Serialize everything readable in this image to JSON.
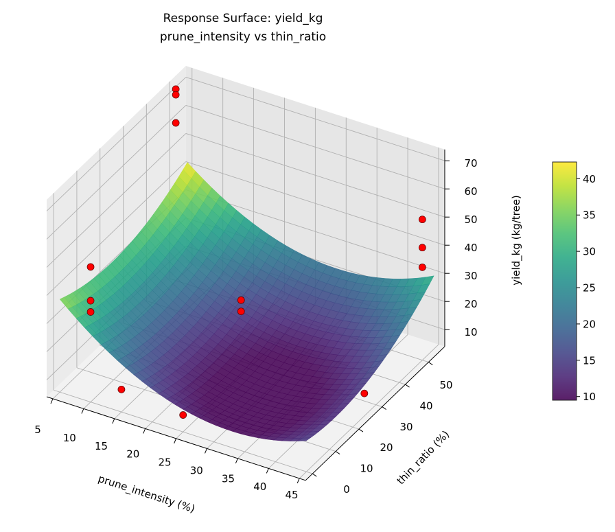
{
  "chart_data": {
    "type": "surface3d",
    "title": "Response Surface: yield_kg",
    "subtitle": "prune_intensity vs thin_ratio",
    "xlabel": "prune_intensity (%)",
    "ylabel": "thin_ratio (%)",
    "zlabel": "yield_kg (kg/tree)",
    "xlim": [
      4,
      46
    ],
    "ylim": [
      -3,
      57
    ],
    "zlim": [
      4,
      74
    ],
    "xticks": [
      "5",
      "10",
      "15",
      "20",
      "25",
      "30",
      "35",
      "40",
      "45"
    ],
    "yticks": [
      "0",
      "10",
      "20",
      "30",
      "40",
      "50"
    ],
    "zticks": [
      "10",
      "20",
      "30",
      "40",
      "50",
      "60",
      "70"
    ],
    "grid": true,
    "colormap": "viridis",
    "surface_model": {
      "description_terms": "quadratic fit",
      "corner_values": {
        "prune5_thin0": 37,
        "prune5_thin55": 42,
        "prune45_thin0": 15,
        "prune45_thin55": 30
      },
      "minimum": 9.5
    },
    "observed_points": {
      "color": "#ff0000",
      "points": [
        {
          "x": 10,
          "y": 0,
          "z": 52
        },
        {
          "x": 10,
          "y": 0,
          "z": 40
        },
        {
          "x": 10,
          "y": 0,
          "z": 36
        },
        {
          "x": 15,
          "y": 0,
          "z": 12
        },
        {
          "x": 5,
          "y": 50,
          "z": 72
        },
        {
          "x": 5,
          "y": 50,
          "z": 70
        },
        {
          "x": 5,
          "y": 50,
          "z": 60
        },
        {
          "x": 25,
          "y": 25,
          "z": 31
        },
        {
          "x": 25,
          "y": 25,
          "z": 27
        },
        {
          "x": 25,
          "y": 0,
          "z": 10
        },
        {
          "x": 45,
          "y": 50,
          "z": 54
        },
        {
          "x": 45,
          "y": 50,
          "z": 44
        },
        {
          "x": 45,
          "y": 50,
          "z": 37
        },
        {
          "x": 45,
          "y": 25,
          "z": 12
        }
      ]
    },
    "colorbar": {
      "range": [
        9.5,
        42.3
      ],
      "ticks": [
        "10",
        "15",
        "20",
        "25",
        "30",
        "35",
        "40"
      ]
    }
  }
}
